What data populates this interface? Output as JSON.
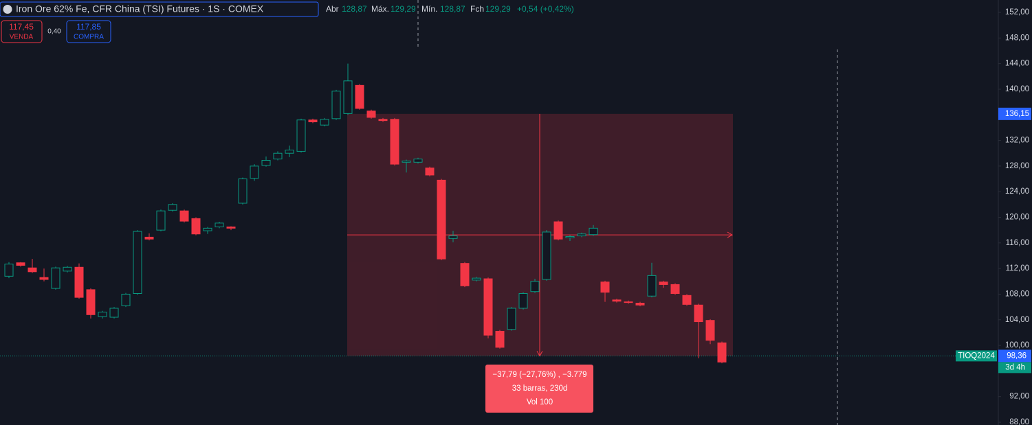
{
  "header": {
    "title": "Iron Ore 62% Fe, CFR China (TSI) Futures · 1S · COMEX",
    "ohlc": [
      {
        "label": "Abr",
        "value": "128,87"
      },
      {
        "label": "Máx.",
        "value": "129,29"
      },
      {
        "label": "Mín.",
        "value": "128,87"
      },
      {
        "label": "Fch",
        "value": "129,29"
      }
    ],
    "change": "+0,54 (+0,42%)",
    "sell": {
      "price": "117,45",
      "label": "VENDA"
    },
    "spread": "0,40",
    "buy": {
      "price": "117,85",
      "label": "COMPRA"
    }
  },
  "chart_data": {
    "type": "candlestick",
    "open": [
      110.8,
      112.9,
      112.1,
      110.6,
      108.9,
      111.6,
      112.2,
      108.7,
      104.5,
      104.4,
      106.2,
      108.1,
      116.9,
      118.0,
      121.1,
      121.0,
      119.8,
      117.9,
      118.5,
      118.5,
      122.2,
      126.1,
      128.1,
      129.1,
      130.0,
      130.3,
      135.2,
      134.4,
      135.4,
      136.2,
      140.6,
      136.6,
      135.3,
      135.3,
      128.6,
      128.6,
      127.7,
      125.8,
      116.7,
      112.8,
      110.2,
      110.4,
      102.2,
      102.5,
      105.8,
      108.4,
      110.3,
      119.3,
      116.8,
      117.1,
      117.3,
      109.9,
      107.1,
      106.8,
      106.6,
      107.7,
      109.9,
      109.5,
      107.8,
      106.3,
      103.9,
      100.4
    ],
    "high": [
      113.0,
      113.0,
      113.5,
      112.0,
      112.3,
      112.4,
      112.8,
      108.9,
      105.4,
      106.0,
      108.2,
      118.0,
      117.5,
      121.2,
      122.2,
      121.2,
      120.0,
      118.5,
      119.3,
      118.6,
      126.2,
      128.3,
      129.5,
      130.3,
      131.2,
      135.4,
      135.4,
      135.5,
      139.9,
      144.0,
      140.8,
      136.8,
      135.5,
      135.5,
      129.0,
      129.3,
      127.9,
      126.0,
      117.9,
      113.0,
      110.7,
      110.6,
      102.4,
      106.0,
      108.3,
      110.4,
      118.0,
      119.5,
      117.2,
      117.6,
      118.8,
      110.1,
      107.3,
      107.0,
      106.8,
      112.9,
      110.1,
      109.7,
      108.0,
      106.5,
      104.1,
      100.6
    ],
    "low": [
      110.5,
      112.3,
      111.3,
      110.0,
      108.7,
      111.4,
      107.3,
      104.2,
      104.2,
      104.2,
      106.0,
      107.9,
      116.4,
      117.8,
      120.9,
      119.2,
      117.2,
      117.4,
      118.3,
      118.0,
      122.0,
      125.7,
      127.9,
      128.9,
      129.4,
      130.1,
      134.7,
      134.2,
      135.2,
      136.0,
      136.8,
      135.4,
      134.9,
      128.1,
      127.0,
      128.4,
      126.4,
      113.3,
      116.1,
      109.1,
      110.0,
      101.1,
      99.5,
      102.3,
      105.6,
      108.2,
      110.1,
      116.4,
      116.3,
      116.9,
      117.1,
      106.8,
      106.7,
      106.5,
      106.1,
      107.5,
      109.0,
      107.9,
      106.2,
      98.0,
      100.2,
      97.2
    ],
    "close": [
      112.7,
      112.5,
      111.5,
      110.3,
      112.1,
      112.2,
      107.5,
      104.8,
      105.2,
      105.8,
      108.0,
      117.8,
      116.6,
      121.0,
      122.0,
      119.4,
      117.4,
      118.3,
      119.1,
      118.3,
      126.0,
      128.0,
      128.9,
      130.0,
      130.5,
      135.2,
      134.9,
      135.3,
      139.7,
      141.3,
      137.0,
      135.6,
      135.1,
      128.3,
      128.8,
      129.1,
      126.6,
      113.5,
      117.1,
      109.3,
      110.5,
      101.6,
      99.7,
      105.8,
      108.1,
      110.0,
      117.7,
      116.6,
      117.0,
      117.4,
      118.3,
      108.3,
      106.9,
      106.7,
      106.3,
      110.9,
      109.5,
      108.1,
      106.4,
      103.7,
      100.8,
      97.4
    ],
    "up_color": "#089981",
    "down_color": "#f23645",
    "ylim": [
      88,
      152
    ],
    "yticks": [
      {
        "value": 88,
        "label": "88,00"
      },
      {
        "value": 92,
        "label": "92,00"
      },
      {
        "value": 100,
        "label": "100,00"
      },
      {
        "value": 104,
        "label": "104,00"
      },
      {
        "value": 108,
        "label": "108,00"
      },
      {
        "value": 112,
        "label": "112,00"
      },
      {
        "value": 116,
        "label": "116,00"
      },
      {
        "value": 120,
        "label": "120,00"
      },
      {
        "value": 124,
        "label": "124,00"
      },
      {
        "value": 128,
        "label": "128,00"
      },
      {
        "value": 132,
        "label": "132,00"
      },
      {
        "value": 140,
        "label": "140,00"
      },
      {
        "value": 144,
        "label": "144,00"
      },
      {
        "value": 148,
        "label": "148,00"
      },
      {
        "value": 152,
        "label": "152,00"
      }
    ],
    "measure": {
      "top": {
        "value": 136.15,
        "label": "136,15"
      },
      "bottom": {
        "value": 98.36,
        "label": "98,36"
      },
      "lines": [
        "−37,79 (−27,76%) , −3.779",
        "33 barras, 230d",
        "Vol 100"
      ]
    },
    "countdown": "3d 4h",
    "symbol": "TIOQ2024"
  }
}
